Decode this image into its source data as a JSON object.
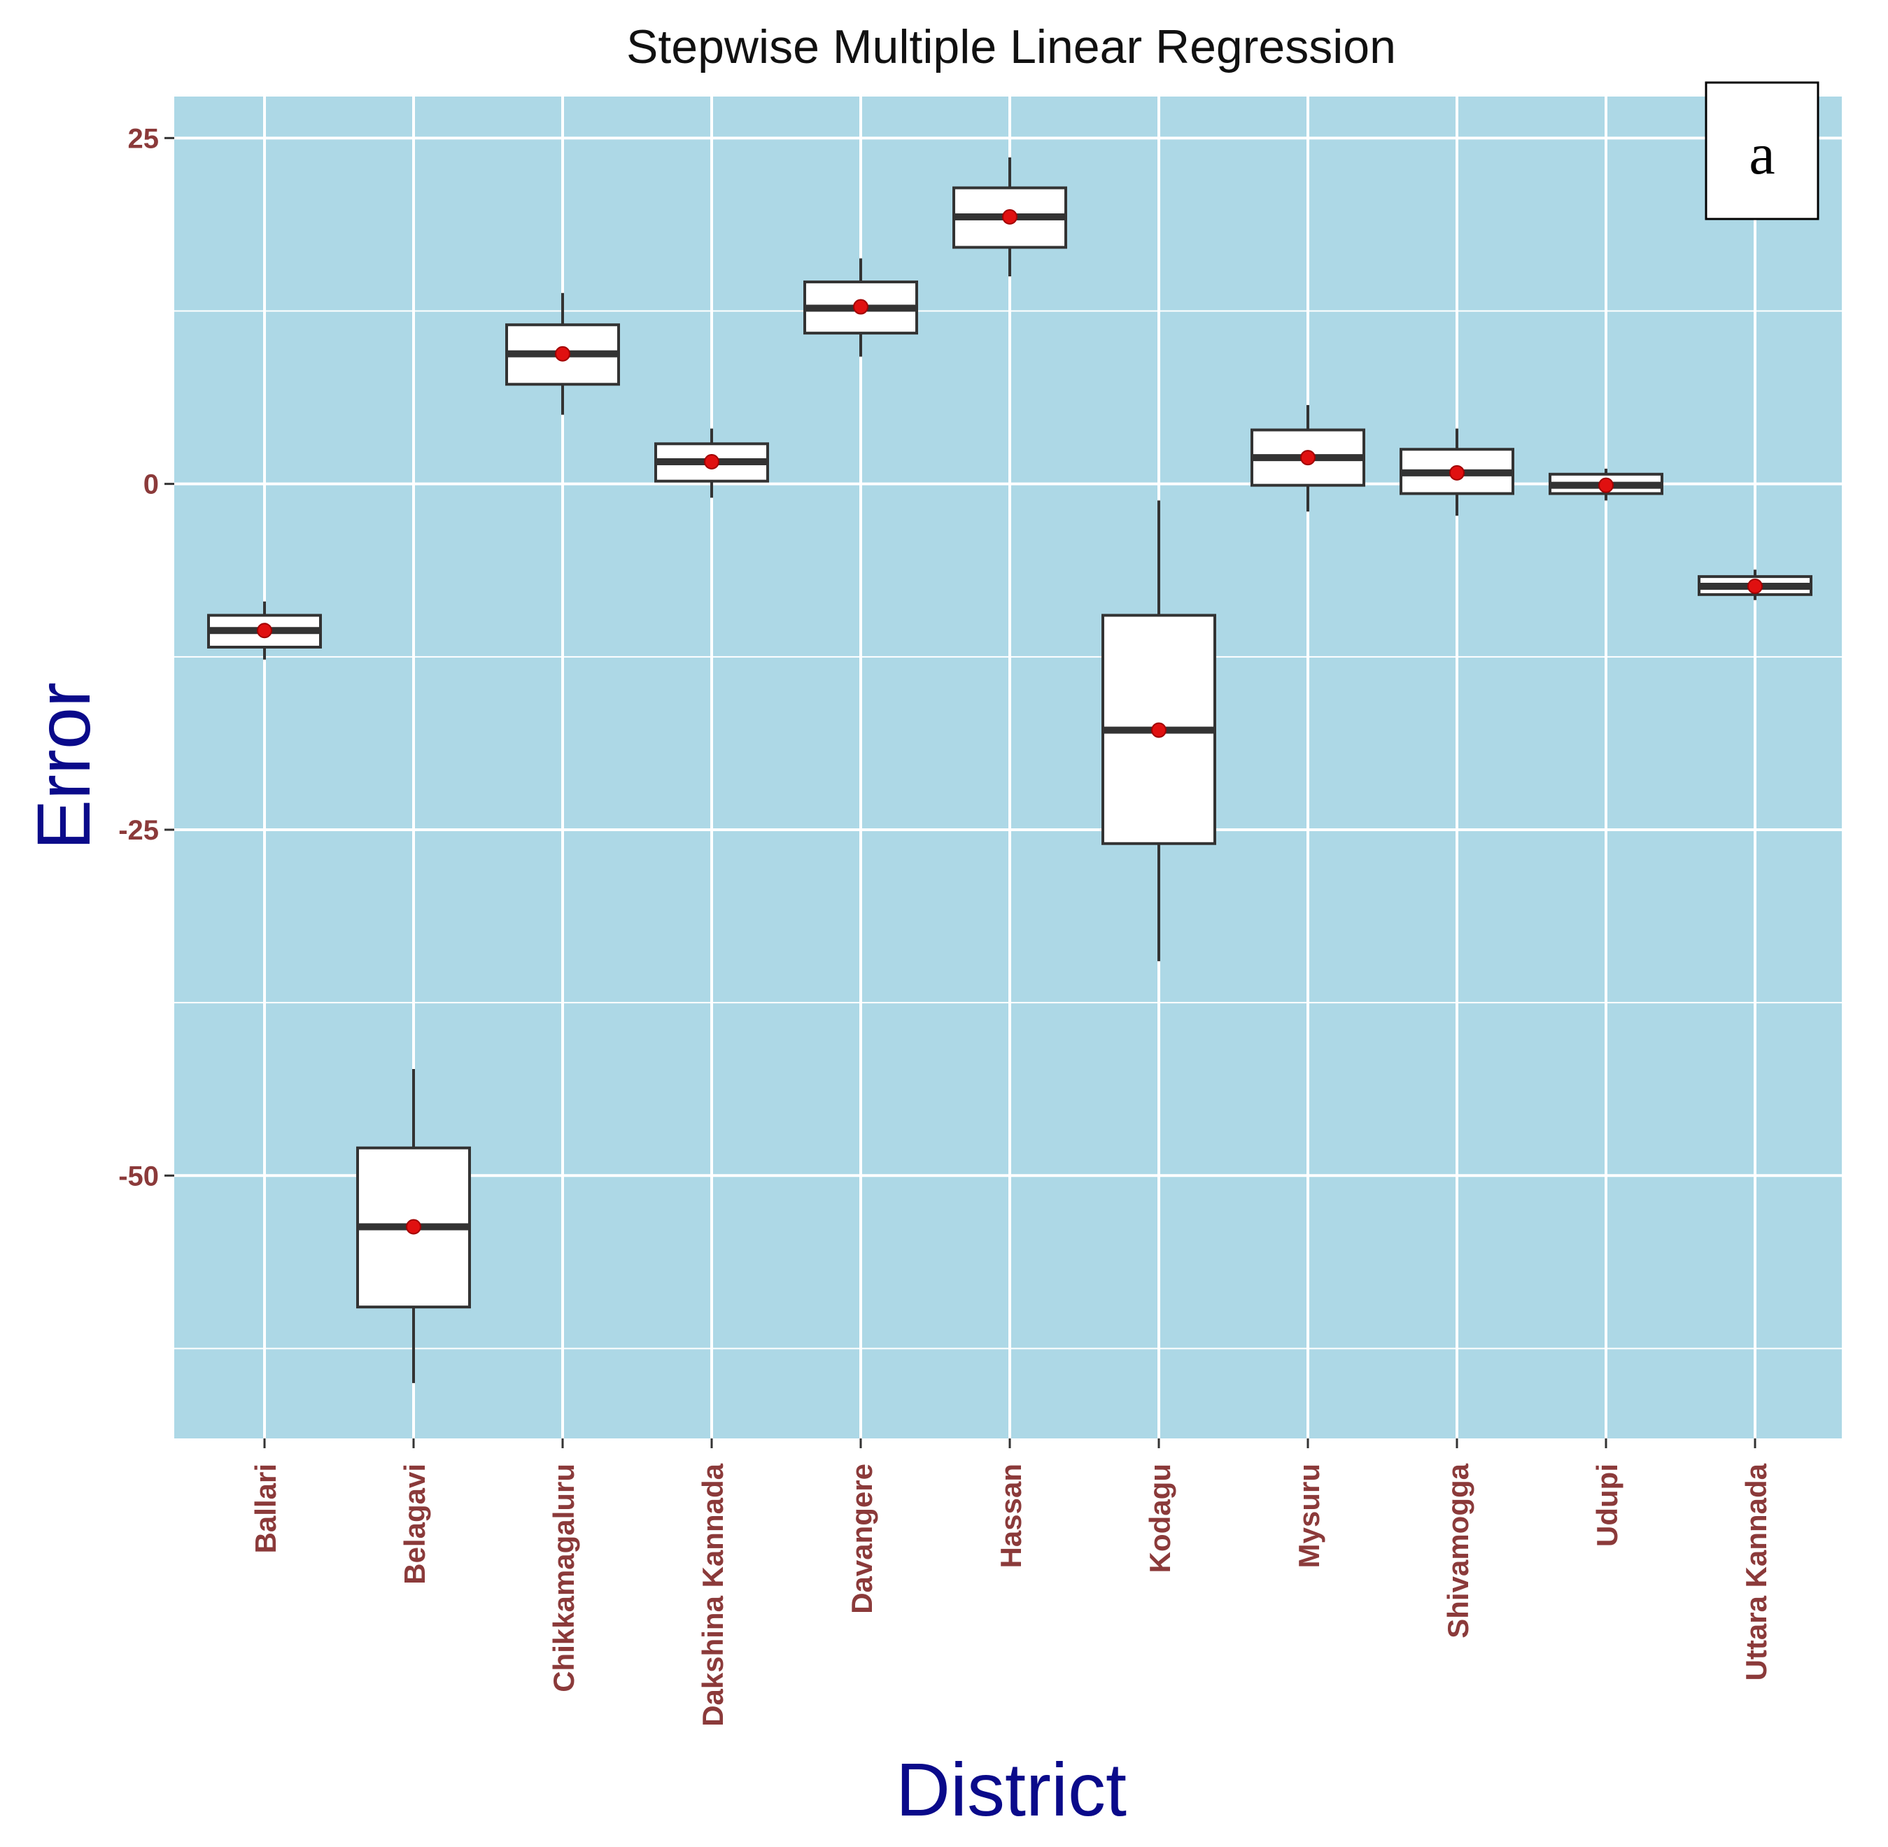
{
  "chart_data": {
    "type": "boxplot",
    "title": "Stepwise Multiple Linear Regression",
    "xlabel": "District",
    "ylabel": "Error",
    "panel_label": "a",
    "ylim": [
      -69,
      28
    ],
    "yticks": [
      25,
      0,
      -25,
      -50
    ],
    "yticklabels": [
      "25",
      "0",
      "-25",
      "-50"
    ],
    "yminor": [
      12.5,
      -12.5,
      -37.5,
      -62.5
    ],
    "grid": true,
    "categories": [
      "Ballari",
      "Belagavi",
      "Chikkamagaluru",
      "Dakshina Kannada",
      "Davangere",
      "Hassan",
      "Kodagu",
      "Mysuru",
      "Shivamogga",
      "Udupi",
      "Uttara Kannada"
    ],
    "boxes": [
      {
        "min": -12.7,
        "q1": -11.8,
        "median": -10.6,
        "q3": -9.5,
        "max": -8.5,
        "mean": -10.6
      },
      {
        "min": -65.0,
        "q1": -59.5,
        "median": -53.7,
        "q3": -48.0,
        "max": -42.3,
        "mean": -53.7
      },
      {
        "min": 5.0,
        "q1": 7.2,
        "median": 9.4,
        "q3": 11.5,
        "max": 13.8,
        "mean": 9.4
      },
      {
        "min": -1.0,
        "q1": 0.2,
        "median": 1.6,
        "q3": 2.9,
        "max": 4.0,
        "mean": 1.6
      },
      {
        "min": 9.2,
        "q1": 10.9,
        "median": 12.7,
        "q3": 14.6,
        "max": 16.3,
        "mean": 12.8
      },
      {
        "min": 15.0,
        "q1": 17.1,
        "median": 19.3,
        "q3": 21.4,
        "max": 23.6,
        "mean": 19.3
      },
      {
        "min": -34.5,
        "q1": -26.0,
        "median": -17.8,
        "q3": -9.5,
        "max": -1.2,
        "mean": -17.8
      },
      {
        "min": -2.0,
        "q1": -0.1,
        "median": 1.9,
        "q3": 3.9,
        "max": 5.7,
        "mean": 1.9
      },
      {
        "min": -2.3,
        "q1": -0.7,
        "median": 0.8,
        "q3": 2.5,
        "max": 4.0,
        "mean": 0.8
      },
      {
        "min": -1.2,
        "q1": -0.7,
        "median": -0.1,
        "q3": 0.7,
        "max": 1.1,
        "mean": -0.1
      },
      {
        "min": -8.4,
        "q1": -8.0,
        "median": -7.4,
        "q3": -6.7,
        "max": -6.2,
        "mean": -7.4
      }
    ],
    "colors": {
      "panel": "#add8e6",
      "grid": "#ffffff",
      "box_fill": "#ffffff",
      "box_line": "#333333",
      "mean_point": "#e01010",
      "tick_label": "#8b3a3a",
      "axis_title": "#0a0a8a"
    }
  }
}
